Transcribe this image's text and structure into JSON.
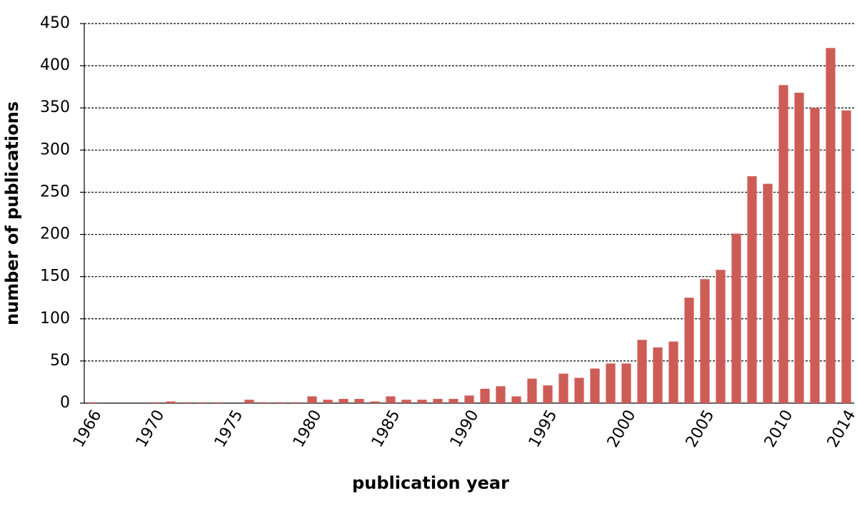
{
  "chart_data": {
    "type": "bar",
    "x_label": "publication year",
    "y_label": "number of publications",
    "categories": [
      "1966",
      null,
      null,
      null,
      "1970",
      null,
      null,
      null,
      null,
      "1975",
      null,
      null,
      null,
      null,
      "1980",
      null,
      null,
      null,
      null,
      "1985",
      null,
      null,
      null,
      null,
      "1990",
      null,
      null,
      null,
      null,
      "1995",
      null,
      null,
      null,
      null,
      "2000",
      null,
      null,
      null,
      null,
      "2005",
      null,
      null,
      null,
      null,
      "2010",
      null,
      null,
      null,
      "2014"
    ],
    "values": [
      1,
      0,
      0,
      0,
      1,
      2,
      1,
      1,
      1,
      0,
      4,
      1,
      1,
      1,
      8,
      4,
      5,
      5,
      2,
      8,
      4,
      4,
      5,
      5,
      9,
      17,
      20,
      8,
      29,
      21,
      35,
      30,
      41,
      47,
      47,
      75,
      66,
      73,
      125,
      147,
      158,
      201,
      269,
      260,
      377,
      368,
      350,
      421,
      347
    ],
    "color": "#cd5c57",
    "ylim": [
      0,
      450
    ],
    "yticks": [
      0,
      50,
      100,
      150,
      200,
      250,
      300,
      350,
      400,
      450
    ],
    "grid": true
  }
}
